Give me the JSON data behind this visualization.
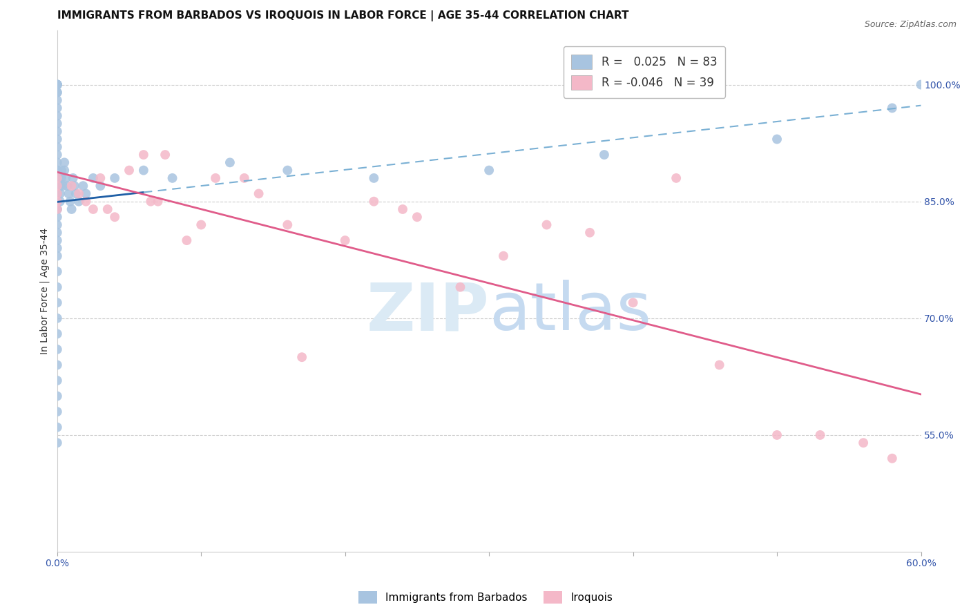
{
  "title": "IMMIGRANTS FROM BARBADOS VS IROQUOIS IN LABOR FORCE | AGE 35-44 CORRELATION CHART",
  "source": "Source: ZipAtlas.com",
  "ylabel": "In Labor Force | Age 35-44",
  "xlim": [
    0.0,
    0.6
  ],
  "ylim": [
    0.4,
    1.07
  ],
  "xticks": [
    0.0,
    0.1,
    0.2,
    0.3,
    0.4,
    0.5,
    0.6
  ],
  "xticklabels": [
    "0.0%",
    "",
    "",
    "",
    "",
    "",
    "60.0%"
  ],
  "yticks_right": [
    0.55,
    0.7,
    0.85,
    1.0
  ],
  "ytick_labels_right": [
    "55.0%",
    "70.0%",
    "85.0%",
    "100.0%"
  ],
  "barbados_R": 0.025,
  "barbados_N": 83,
  "iroquois_R": -0.046,
  "iroquois_N": 39,
  "barbados_color": "#a8c4e0",
  "barbados_line_color": "#1f5fa6",
  "barbados_dash_color": "#7ab0d4",
  "iroquois_color": "#f4b8c8",
  "iroquois_line_color": "#e05c8a",
  "background_color": "#ffffff",
  "tick_fontsize": 10,
  "legend_fontsize": 11,
  "barbados_x": [
    0.0,
    0.0,
    0.0,
    0.0,
    0.0,
    0.0,
    0.0,
    0.0,
    0.0,
    0.0,
    0.0,
    0.0,
    0.0,
    0.0,
    0.0,
    0.0,
    0.0,
    0.0,
    0.0,
    0.0,
    0.0,
    0.0,
    0.0,
    0.0,
    0.0,
    0.0,
    0.0,
    0.0,
    0.0,
    0.0,
    0.0,
    0.0,
    0.0,
    0.0,
    0.0,
    0.0,
    0.0,
    0.0,
    0.0,
    0.0,
    0.0,
    0.0,
    0.0,
    0.0,
    0.0,
    0.0,
    0.0,
    0.0,
    0.0,
    0.0,
    0.002,
    0.002,
    0.002,
    0.002,
    0.003,
    0.003,
    0.004,
    0.005,
    0.005,
    0.006,
    0.007,
    0.008,
    0.009,
    0.01,
    0.011,
    0.012,
    0.013,
    0.015,
    0.018,
    0.02,
    0.025,
    0.03,
    0.04,
    0.06,
    0.08,
    0.12,
    0.16,
    0.22,
    0.3,
    0.38,
    0.5,
    0.58,
    0.6
  ],
  "barbados_y": [
    1.0,
    1.0,
    1.0,
    1.0,
    1.0,
    1.0,
    0.99,
    0.99,
    0.98,
    0.97,
    0.96,
    0.95,
    0.94,
    0.93,
    0.92,
    0.91,
    0.9,
    0.89,
    0.88,
    0.88,
    0.88,
    0.87,
    0.87,
    0.87,
    0.86,
    0.86,
    0.86,
    0.85,
    0.85,
    0.85,
    0.84,
    0.84,
    0.83,
    0.82,
    0.81,
    0.8,
    0.79,
    0.78,
    0.76,
    0.74,
    0.72,
    0.7,
    0.68,
    0.66,
    0.64,
    0.62,
    0.6,
    0.58,
    0.56,
    0.54,
    0.88,
    0.87,
    0.86,
    0.85,
    0.89,
    0.88,
    0.87,
    0.9,
    0.89,
    0.88,
    0.87,
    0.86,
    0.85,
    0.84,
    0.88,
    0.87,
    0.86,
    0.85,
    0.87,
    0.86,
    0.88,
    0.87,
    0.88,
    0.89,
    0.88,
    0.9,
    0.89,
    0.88,
    0.89,
    0.91,
    0.93,
    0.97,
    1.0
  ],
  "iroquois_x": [
    0.0,
    0.0,
    0.0,
    0.0,
    0.0,
    0.01,
    0.015,
    0.02,
    0.025,
    0.03,
    0.035,
    0.04,
    0.05,
    0.06,
    0.065,
    0.07,
    0.09,
    0.1,
    0.11,
    0.13,
    0.16,
    0.2,
    0.22,
    0.25,
    0.28,
    0.31,
    0.34,
    0.37,
    0.4,
    0.43,
    0.46,
    0.5,
    0.53,
    0.56,
    0.58,
    0.14,
    0.075,
    0.17,
    0.24
  ],
  "iroquois_y": [
    0.88,
    0.87,
    0.86,
    0.85,
    0.84,
    0.87,
    0.86,
    0.85,
    0.84,
    0.88,
    0.84,
    0.83,
    0.89,
    0.91,
    0.85,
    0.85,
    0.8,
    0.82,
    0.88,
    0.88,
    0.82,
    0.8,
    0.85,
    0.83,
    0.74,
    0.78,
    0.82,
    0.81,
    0.72,
    0.88,
    0.64,
    0.55,
    0.55,
    0.54,
    0.52,
    0.86,
    0.91,
    0.65,
    0.84
  ]
}
